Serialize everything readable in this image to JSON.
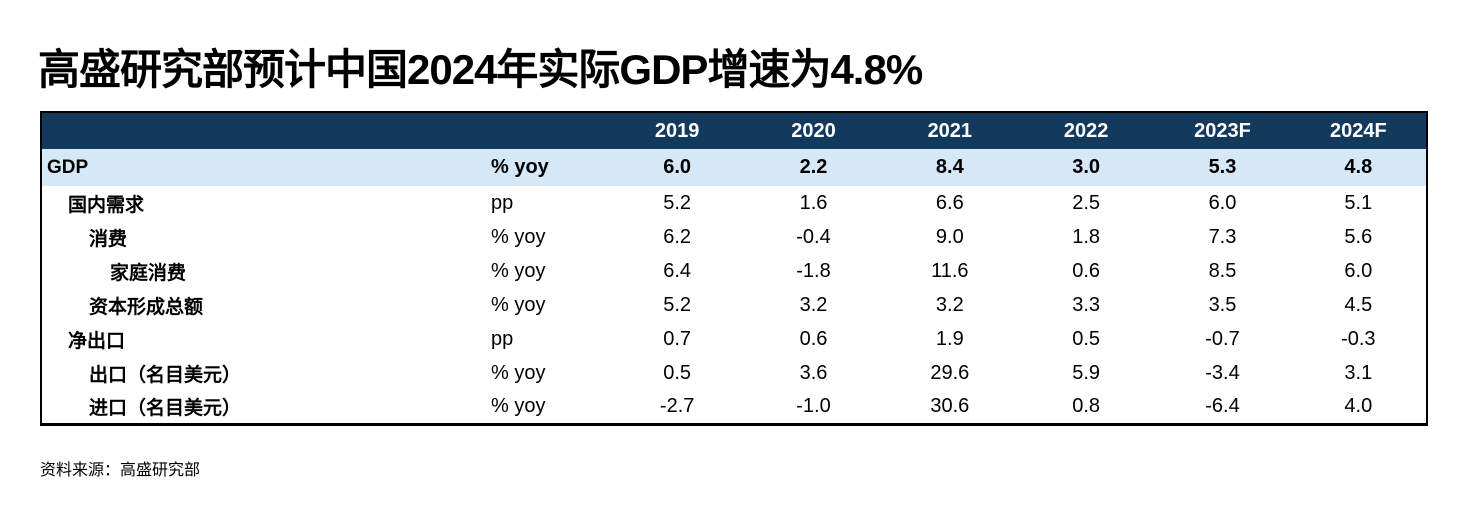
{
  "title": "高盛研究部预计中国2024年实际GDP增速为4.8%",
  "source_note": "资料来源：高盛研究部",
  "colors": {
    "header_bg": "#133A5C",
    "header_text": "#FFFFFF",
    "highlight_row_bg": "#D6E8F8",
    "table_border": "#000000"
  },
  "chart_data": {
    "type": "table",
    "title": "高盛研究部预计中国2024年实际GDP增速为4.8%",
    "columns": [
      "",
      "",
      "2019",
      "2020",
      "2021",
      "2022",
      "2023F",
      "2024F"
    ],
    "rows": [
      {
        "label": "GDP",
        "unit": "% yoy",
        "indent": 0,
        "highlight": true,
        "values": [
          "6.0",
          "2.2",
          "8.4",
          "3.0",
          "5.3",
          "4.8"
        ]
      },
      {
        "label": "国内需求",
        "unit": "pp",
        "indent": 1,
        "highlight": false,
        "values": [
          "5.2",
          "1.6",
          "6.6",
          "2.5",
          "6.0",
          "5.1"
        ]
      },
      {
        "label": "消费",
        "unit": "% yoy",
        "indent": 2,
        "highlight": false,
        "values": [
          "6.2",
          "-0.4",
          "9.0",
          "1.8",
          "7.3",
          "5.6"
        ]
      },
      {
        "label": "家庭消费",
        "unit": "% yoy",
        "indent": 3,
        "highlight": false,
        "values": [
          "6.4",
          "-1.8",
          "11.6",
          "0.6",
          "8.5",
          "6.0"
        ]
      },
      {
        "label": "资本形成总额",
        "unit": "% yoy",
        "indent": 2,
        "highlight": false,
        "values": [
          "5.2",
          "3.2",
          "3.2",
          "3.3",
          "3.5",
          "4.5"
        ]
      },
      {
        "label": "净出口",
        "unit": "pp",
        "indent": 1,
        "highlight": false,
        "values": [
          "0.7",
          "0.6",
          "1.9",
          "0.5",
          "-0.7",
          "-0.3"
        ]
      },
      {
        "label": "出口（名目美元）",
        "unit": "% yoy",
        "indent": 2,
        "highlight": false,
        "values": [
          "0.5",
          "3.6",
          "29.6",
          "5.9",
          "-3.4",
          "3.1"
        ]
      },
      {
        "label": "进口（名目美元）",
        "unit": "% yoy",
        "indent": 2,
        "highlight": false,
        "values": [
          "-2.7",
          "-1.0",
          "30.6",
          "0.8",
          "-6.4",
          "4.0"
        ]
      }
    ],
    "source": "资料来源：高盛研究部",
    "layout": {
      "highlighted_row": "GDP",
      "gridlines": false,
      "header_style": "navy-band"
    }
  }
}
